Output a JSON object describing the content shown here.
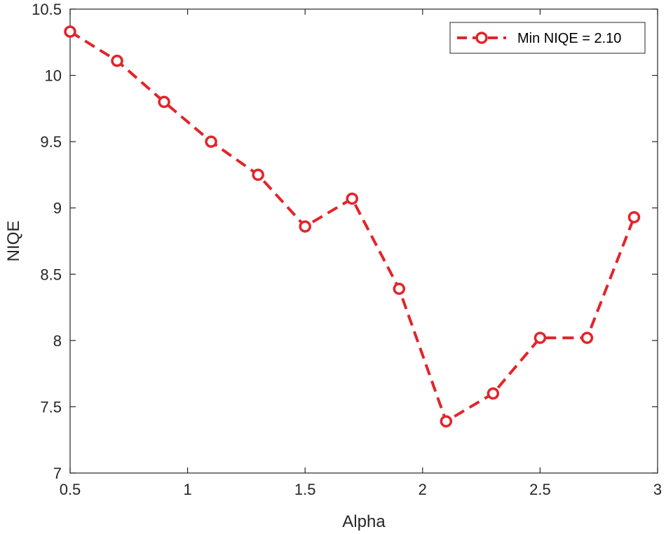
{
  "chart_data": {
    "type": "line",
    "title": "",
    "xlabel": "Alpha",
    "ylabel": "NIQE",
    "xlim": [
      0.5,
      3
    ],
    "ylim": [
      7,
      10.5
    ],
    "xticks": [
      0.5,
      1,
      1.5,
      2,
      2.5,
      3
    ],
    "xtick_labels": [
      "0.5",
      "1",
      "1.5",
      "2",
      "2.5",
      "3"
    ],
    "yticks": [
      7,
      7.5,
      8,
      8.5,
      9,
      9.5,
      10,
      10.5
    ],
    "ytick_labels": [
      "7",
      "7.5",
      "8",
      "8.5",
      "9",
      "9.5",
      "10",
      "10.5"
    ],
    "grid": false,
    "legend_position": "top-right",
    "series": [
      {
        "name": "Min NIQE = 2.10",
        "color": "#e3242b",
        "line_style": "dashed",
        "marker": "circle",
        "x": [
          0.5,
          0.7,
          0.9,
          1.1,
          1.3,
          1.5,
          1.7,
          1.9,
          2.1,
          2.3,
          2.5,
          2.7,
          2.9
        ],
        "y": [
          10.33,
          10.11,
          9.8,
          9.5,
          9.25,
          8.86,
          9.07,
          8.39,
          7.39,
          7.6,
          8.02,
          8.02,
          8.93
        ]
      }
    ]
  }
}
